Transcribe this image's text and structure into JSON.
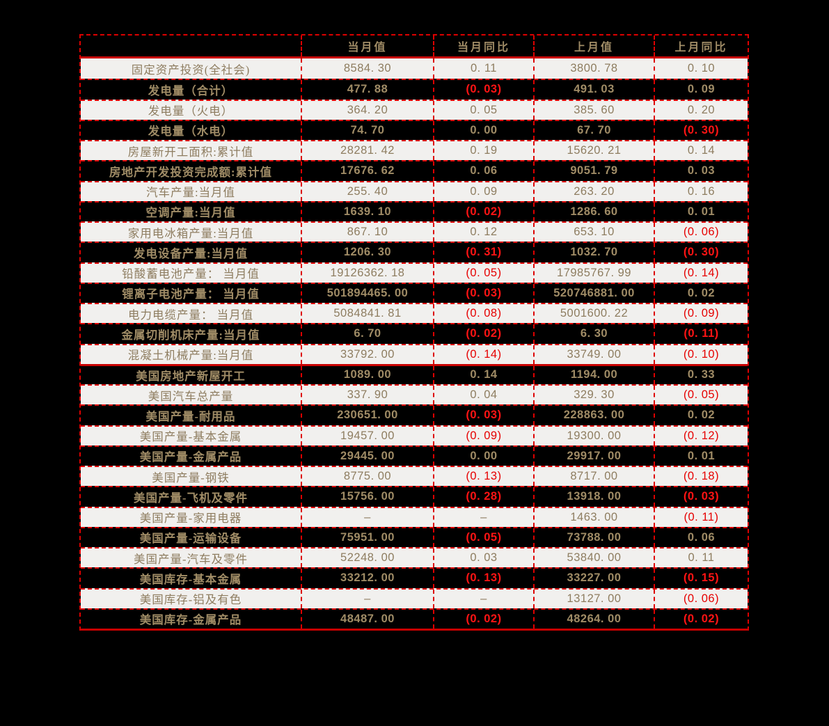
{
  "colors": {
    "background": "#000000",
    "row_light_bg": "#f1f0ee",
    "text_tan": "#8e7d60",
    "text_tan_bold": "#a08c66",
    "negative_red": "#e60000",
    "negative_red_bright": "#ff1414",
    "dashed_border_red": "#dd0000",
    "solid_line_red": "#c80000"
  },
  "chart_data": {
    "type": "table",
    "columns": [
      "",
      "当月值",
      "当月同比",
      "上月值",
      "上月同比"
    ],
    "section_break_before_row": 15,
    "negative_format": "parentheses, red",
    "rows": [
      {
        "label": "固定资产投资(全社会)",
        "cells": [
          "8584. 30",
          "0. 11",
          "3800. 78",
          "0. 10"
        ]
      },
      {
        "label": "发电量（合计）",
        "cells": [
          "477. 88",
          "(0. 03)",
          "491. 03",
          "0. 09"
        ]
      },
      {
        "label": "发电量（火电）",
        "cells": [
          "364. 20",
          "0. 05",
          "385. 60",
          "0. 20"
        ]
      },
      {
        "label": "发电量（水电）",
        "cells": [
          "74. 70",
          "0. 00",
          "67. 70",
          "(0. 30)"
        ]
      },
      {
        "label": "房屋新开工面积:累计值",
        "cells": [
          "28281. 42",
          "0. 19",
          "15620. 21",
          "0. 14"
        ]
      },
      {
        "label": "房地产开发投资完成额:累计值",
        "cells": [
          "17676. 62",
          "0. 06",
          "9051. 79",
          "0. 03"
        ]
      },
      {
        "label": "汽车产量:当月值",
        "cells": [
          "255. 40",
          "0. 09",
          "263. 20",
          "0. 16"
        ]
      },
      {
        "label": "空调产量:当月值",
        "cells": [
          "1639. 10",
          "(0. 02)",
          "1286. 60",
          "0. 01"
        ]
      },
      {
        "label": "家用电冰箱产量:当月值",
        "cells": [
          "867. 10",
          "0. 12",
          "653. 10",
          "(0. 06)"
        ]
      },
      {
        "label": "发电设备产量:当月值",
        "cells": [
          "1206. 30",
          "(0. 31)",
          "1032. 70",
          "(0. 30)"
        ]
      },
      {
        "label": "铅酸蓄电池产量： 当月值",
        "cells": [
          "19126362. 18",
          "(0. 05)",
          "17985767. 99",
          "(0. 14)"
        ]
      },
      {
        "label": "锂离子电池产量： 当月值",
        "cells": [
          "501894465. 00",
          "(0. 03)",
          "520746881. 00",
          "0. 02"
        ]
      },
      {
        "label": "电力电缆产量： 当月值",
        "cells": [
          "5084841. 81",
          "(0. 08)",
          "5001600. 22",
          "(0. 09)"
        ]
      },
      {
        "label": "金属切削机床产量:当月值",
        "cells": [
          "6. 70",
          "(0. 02)",
          "6. 30",
          "(0. 11)"
        ]
      },
      {
        "label": "混凝土机械产量:当月值",
        "cells": [
          "33792. 00",
          "(0. 14)",
          "33749. 00",
          "(0. 10)"
        ]
      },
      {
        "label": "美国房地产新屋开工",
        "cells": [
          "1089. 00",
          "0. 14",
          "1194. 00",
          "0. 33"
        ]
      },
      {
        "label": "美国汽车总产量",
        "cells": [
          "337. 90",
          "0. 04",
          "329. 30",
          "(0. 05)"
        ]
      },
      {
        "label": "美国产量-耐用品",
        "cells": [
          "230651. 00",
          "(0. 03)",
          "228863. 00",
          "0. 02"
        ]
      },
      {
        "label": "美国产量-基本金属",
        "cells": [
          "19457. 00",
          "(0. 09)",
          "19300. 00",
          "(0. 12)"
        ]
      },
      {
        "label": "美国产量-金属产品",
        "cells": [
          "29445. 00",
          "0. 00",
          "29917. 00",
          "0. 01"
        ]
      },
      {
        "label": "美国产量-钢铁",
        "cells": [
          "8775. 00",
          "(0. 13)",
          "8717. 00",
          "(0. 18)"
        ]
      },
      {
        "label": "美国产量-飞机及零件",
        "cells": [
          "15756. 00",
          "(0. 28)",
          "13918. 00",
          "(0. 03)"
        ]
      },
      {
        "label": "美国产量-家用电器",
        "cells": [
          "–",
          "–",
          "1463. 00",
          "(0. 11)"
        ]
      },
      {
        "label": "美国产量-运输设备",
        "cells": [
          "75951. 00",
          "(0. 05)",
          "73788. 00",
          "0. 06"
        ]
      },
      {
        "label": "美国产量-汽车及零件",
        "cells": [
          "52248. 00",
          "0. 03",
          "53840. 00",
          "0. 11"
        ]
      },
      {
        "label": "美国库存-基本金属",
        "cells": [
          "33212. 00",
          "(0. 13)",
          "33227. 00",
          "(0. 15)"
        ]
      },
      {
        "label": "美国库存-铝及有色",
        "cells": [
          "–",
          "–",
          "13127. 00",
          "(0. 06)"
        ]
      },
      {
        "label": "美国库存-金属产品",
        "cells": [
          "48487. 00",
          "(0. 02)",
          "48264. 00",
          "(0. 02)"
        ]
      }
    ]
  }
}
